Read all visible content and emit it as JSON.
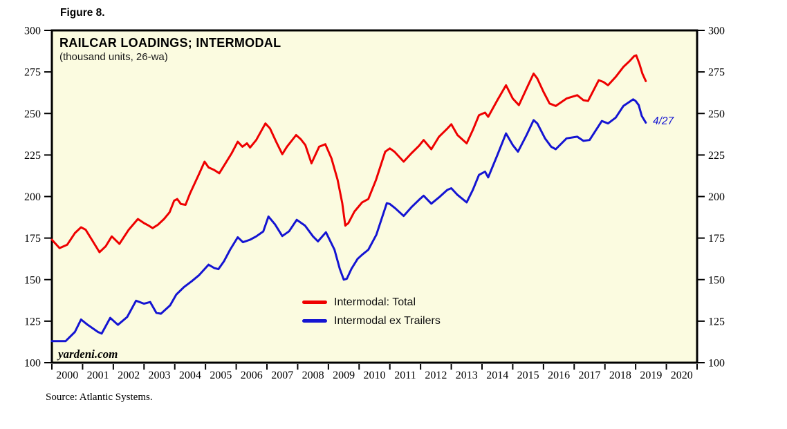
{
  "figure_label": "Figure 8.",
  "chart_data": {
    "type": "line",
    "title": "RAILCAR LOADINGS; INTERMODAL",
    "subtitle": "(thousand units, 26-wa)",
    "watermark": "yardeni.com",
    "source": "Source: Atlantic Systems.",
    "annotation": {
      "text": "4/27",
      "color": "#1414d2"
    },
    "plot_background": "#fbfbe0",
    "axis_color": "#000000",
    "grid": false,
    "legend_position": "inside-bottom-center",
    "ylim": [
      100,
      300
    ],
    "y_ticks": [
      100,
      125,
      150,
      175,
      200,
      225,
      250,
      275,
      300
    ],
    "x_range": [
      2000,
      2021
    ],
    "x_years": [
      2000,
      2001,
      2002,
      2003,
      2004,
      2005,
      2006,
      2007,
      2008,
      2009,
      2010,
      2011,
      2012,
      2013,
      2014,
      2015,
      2016,
      2017,
      2018,
      2019,
      2020
    ],
    "series": [
      {
        "name": "Intermodal: Total",
        "color": "#ee0000",
        "points": [
          [
            2000.0,
            174
          ],
          [
            2000.25,
            169
          ],
          [
            2000.5,
            171
          ],
          [
            2000.75,
            178
          ],
          [
            2000.95,
            181.5
          ],
          [
            2001.1,
            180
          ],
          [
            2001.3,
            174
          ],
          [
            2001.55,
            166.5
          ],
          [
            2001.75,
            170
          ],
          [
            2001.95,
            176
          ],
          [
            2002.2,
            171.5
          ],
          [
            2002.5,
            180
          ],
          [
            2002.8,
            186.5
          ],
          [
            2003.0,
            184
          ],
          [
            2003.15,
            182.5
          ],
          [
            2003.28,
            181
          ],
          [
            2003.45,
            183
          ],
          [
            2003.65,
            186.5
          ],
          [
            2003.83,
            190.5
          ],
          [
            2003.98,
            197.5
          ],
          [
            2004.08,
            198.5
          ],
          [
            2004.2,
            195.5
          ],
          [
            2004.35,
            195
          ],
          [
            2004.5,
            202
          ],
          [
            2004.65,
            208
          ],
          [
            2004.8,
            214
          ],
          [
            2004.97,
            221
          ],
          [
            2005.1,
            217.5
          ],
          [
            2005.28,
            216
          ],
          [
            2005.45,
            214
          ],
          [
            2005.65,
            220
          ],
          [
            2005.85,
            226
          ],
          [
            2006.05,
            233
          ],
          [
            2006.2,
            230
          ],
          [
            2006.35,
            232
          ],
          [
            2006.45,
            229.5
          ],
          [
            2006.65,
            234
          ],
          [
            2006.95,
            244
          ],
          [
            2007.1,
            241
          ],
          [
            2007.3,
            233
          ],
          [
            2007.5,
            225.5
          ],
          [
            2007.65,
            230
          ],
          [
            2007.95,
            237
          ],
          [
            2008.1,
            234.5
          ],
          [
            2008.25,
            231
          ],
          [
            2008.45,
            220
          ],
          [
            2008.7,
            230
          ],
          [
            2008.9,
            231.5
          ],
          [
            2009.1,
            223
          ],
          [
            2009.3,
            210
          ],
          [
            2009.45,
            196
          ],
          [
            2009.55,
            182.5
          ],
          [
            2009.65,
            184
          ],
          [
            2009.85,
            191
          ],
          [
            2010.1,
            196.5
          ],
          [
            2010.3,
            198.5
          ],
          [
            2010.55,
            210
          ],
          [
            2010.85,
            227
          ],
          [
            2011.0,
            229
          ],
          [
            2011.15,
            227
          ],
          [
            2011.45,
            221
          ],
          [
            2011.7,
            226
          ],
          [
            2011.95,
            230.5
          ],
          [
            2012.1,
            234
          ],
          [
            2012.35,
            228.5
          ],
          [
            2012.6,
            236
          ],
          [
            2012.85,
            240.5
          ],
          [
            2013.0,
            243.5
          ],
          [
            2013.2,
            237
          ],
          [
            2013.5,
            232
          ],
          [
            2013.7,
            240
          ],
          [
            2013.9,
            249
          ],
          [
            2014.1,
            250.5
          ],
          [
            2014.2,
            248
          ],
          [
            2014.5,
            258
          ],
          [
            2014.78,
            267
          ],
          [
            2015.0,
            259
          ],
          [
            2015.2,
            255
          ],
          [
            2015.45,
            265
          ],
          [
            2015.68,
            274
          ],
          [
            2015.8,
            271
          ],
          [
            2016.0,
            263
          ],
          [
            2016.2,
            256
          ],
          [
            2016.4,
            254.5
          ],
          [
            2016.75,
            259
          ],
          [
            2017.1,
            261
          ],
          [
            2017.3,
            258
          ],
          [
            2017.45,
            257.5
          ],
          [
            2017.8,
            270
          ],
          [
            2017.95,
            269
          ],
          [
            2018.1,
            267
          ],
          [
            2018.35,
            272
          ],
          [
            2018.6,
            278
          ],
          [
            2018.8,
            281.5
          ],
          [
            2018.95,
            284.5
          ],
          [
            2019.02,
            285
          ],
          [
            2019.12,
            280
          ],
          [
            2019.22,
            274
          ],
          [
            2019.33,
            269.5
          ]
        ]
      },
      {
        "name": "Intermodal ex Trailers",
        "color": "#1414d2",
        "points": [
          [
            2000.0,
            113
          ],
          [
            2000.45,
            113
          ],
          [
            2000.75,
            118.5
          ],
          [
            2000.95,
            126
          ],
          [
            2001.15,
            123
          ],
          [
            2001.5,
            118.5
          ],
          [
            2001.62,
            117.5
          ],
          [
            2001.9,
            127
          ],
          [
            2002.15,
            122.8
          ],
          [
            2002.45,
            127.5
          ],
          [
            2002.74,
            137.3
          ],
          [
            2003.0,
            135.5
          ],
          [
            2003.2,
            136.5
          ],
          [
            2003.4,
            130
          ],
          [
            2003.55,
            129.5
          ],
          [
            2003.85,
            134.5
          ],
          [
            2004.05,
            141
          ],
          [
            2004.3,
            145.5
          ],
          [
            2004.55,
            149
          ],
          [
            2004.78,
            152.5
          ],
          [
            2005.1,
            159
          ],
          [
            2005.28,
            157
          ],
          [
            2005.42,
            156.3
          ],
          [
            2005.6,
            161
          ],
          [
            2005.8,
            168
          ],
          [
            2006.05,
            175.5
          ],
          [
            2006.22,
            172.5
          ],
          [
            2006.45,
            174
          ],
          [
            2006.65,
            176
          ],
          [
            2006.88,
            179
          ],
          [
            2007.05,
            188
          ],
          [
            2007.26,
            183.3
          ],
          [
            2007.5,
            176.2
          ],
          [
            2007.72,
            179.1
          ],
          [
            2007.97,
            186
          ],
          [
            2008.24,
            182.5
          ],
          [
            2008.5,
            176
          ],
          [
            2008.66,
            173
          ],
          [
            2008.92,
            178.5
          ],
          [
            2009.2,
            168
          ],
          [
            2009.37,
            156.5
          ],
          [
            2009.5,
            150
          ],
          [
            2009.6,
            150.5
          ],
          [
            2009.75,
            156.5
          ],
          [
            2009.95,
            162.5
          ],
          [
            2010.1,
            165
          ],
          [
            2010.3,
            168
          ],
          [
            2010.56,
            177
          ],
          [
            2010.9,
            196
          ],
          [
            2011.0,
            195.5
          ],
          [
            2011.17,
            193
          ],
          [
            2011.45,
            188.3
          ],
          [
            2011.7,
            193.5
          ],
          [
            2011.95,
            198
          ],
          [
            2012.1,
            200.5
          ],
          [
            2012.35,
            195.7
          ],
          [
            2012.6,
            199.5
          ],
          [
            2012.87,
            204
          ],
          [
            2013.0,
            205
          ],
          [
            2013.2,
            201
          ],
          [
            2013.5,
            196.5
          ],
          [
            2013.7,
            204
          ],
          [
            2013.9,
            213
          ],
          [
            2014.1,
            215
          ],
          [
            2014.2,
            211.5
          ],
          [
            2014.5,
            225
          ],
          [
            2014.78,
            238
          ],
          [
            2015.0,
            231
          ],
          [
            2015.17,
            227
          ],
          [
            2015.45,
            237
          ],
          [
            2015.68,
            246
          ],
          [
            2015.8,
            244
          ],
          [
            2016.05,
            235
          ],
          [
            2016.25,
            230
          ],
          [
            2016.4,
            228.5
          ],
          [
            2016.75,
            235
          ],
          [
            2017.1,
            236
          ],
          [
            2017.3,
            233.5
          ],
          [
            2017.5,
            234
          ],
          [
            2017.9,
            245.5
          ],
          [
            2018.1,
            244
          ],
          [
            2018.35,
            247.5
          ],
          [
            2018.6,
            254.5
          ],
          [
            2018.8,
            257
          ],
          [
            2018.92,
            258.5
          ],
          [
            2019.0,
            257.5
          ],
          [
            2019.1,
            255
          ],
          [
            2019.2,
            248.5
          ],
          [
            2019.33,
            244.5
          ]
        ]
      }
    ]
  }
}
